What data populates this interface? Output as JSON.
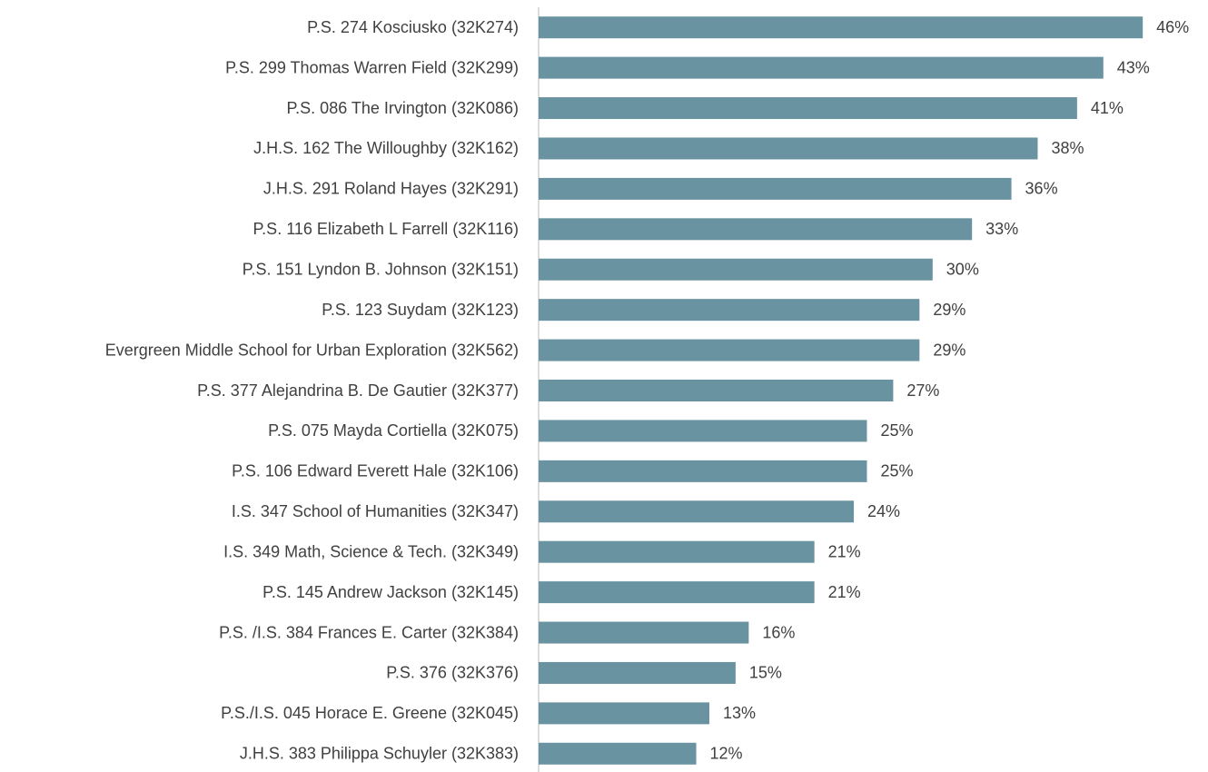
{
  "chart_data": {
    "type": "hbar",
    "categories": [
      "P.S. 274 Kosciusko (32K274)",
      "P.S. 299 Thomas Warren Field (32K299)",
      "P.S. 086 The Irvington (32K086)",
      "J.H.S. 162 The Willoughby (32K162)",
      "J.H.S. 291 Roland Hayes (32K291)",
      "P.S. 116 Elizabeth L Farrell (32K116)",
      "P.S. 151 Lyndon B. Johnson (32K151)",
      "P.S. 123 Suydam (32K123)",
      "Evergreen Middle School for Urban Exploration (32K562)",
      "P.S. 377 Alejandrina B. De Gautier (32K377)",
      "P.S. 075 Mayda Cortiella (32K075)",
      "P.S. 106 Edward Everett Hale (32K106)",
      "I.S. 347 School of Humanities (32K347)",
      "I.S. 349 Math, Science & Tech. (32K349)",
      "P.S. 145 Andrew Jackson (32K145)",
      "P.S. /I.S. 384 Frances E. Carter (32K384)",
      "P.S. 376 (32K376)",
      "P.S./I.S. 045 Horace E. Greene (32K045)",
      "J.H.S. 383 Philippa Schuyler (32K383)"
    ],
    "values": [
      46,
      43,
      41,
      38,
      36,
      33,
      30,
      29,
      29,
      27,
      25,
      25,
      24,
      21,
      21,
      16,
      15,
      13,
      12
    ],
    "value_labels": [
      "46%",
      "43%",
      "41%",
      "38%",
      "36%",
      "33%",
      "30%",
      "29%",
      "29%",
      "27%",
      "25%",
      "25%",
      "24%",
      "21%",
      "21%",
      "16%",
      "15%",
      "13%",
      "12%"
    ],
    "color": "#6993a0",
    "xlim": [
      0,
      50
    ]
  }
}
